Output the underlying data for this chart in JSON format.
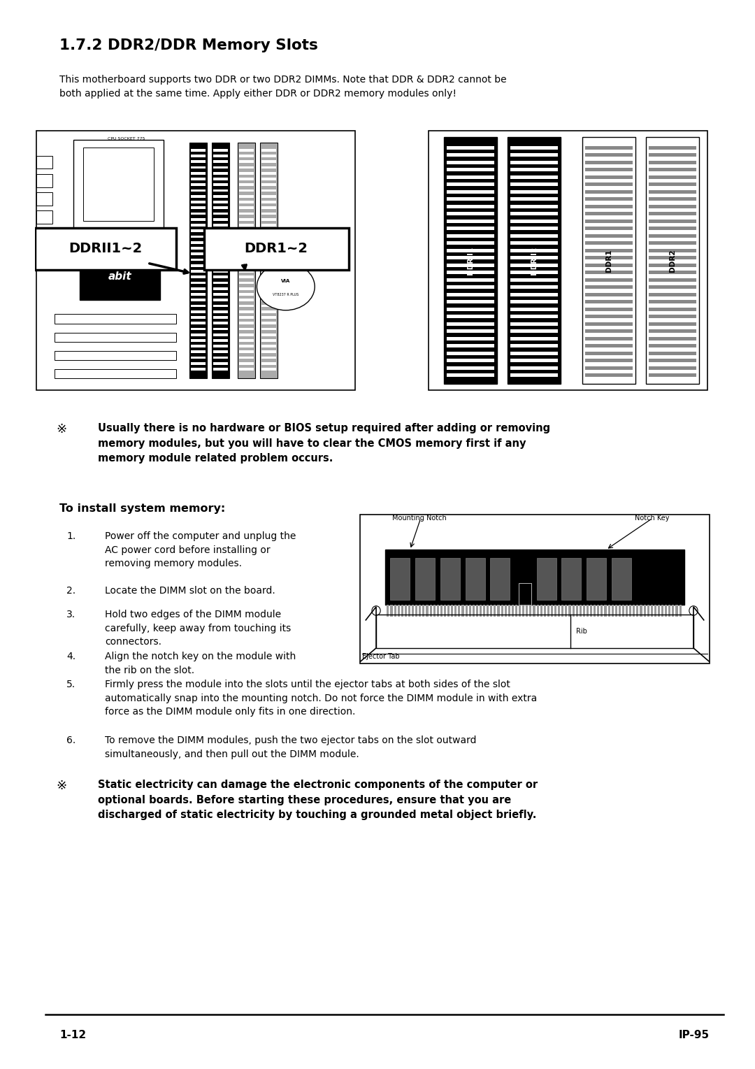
{
  "title": "1.7.2 DDR2/DDR Memory Slots",
  "intro_text": "This motherboard supports two DDR or two DDR2 DIMMs. Note that DDR & DDR2 cannot be\nboth applied at the same time. Apply either DDR or DDR2 memory modules only!",
  "warning1_symbol": "※",
  "warning1_text": "Usually there is no hardware or BIOS setup required after adding or removing\nmemory modules, but you will have to clear the CMOS memory first if any\nmemory module related problem occurs.",
  "install_title": "To install system memory:",
  "steps": [
    "Power off the computer and unplug the\nAC power cord before installing or\nremoving memory modules.",
    "Locate the DIMM slot on the board.",
    "Hold two edges of the DIMM module\ncarefully, keep away from touching its\nconnectors.",
    "Align the notch key on the module with\nthe rib on the slot.",
    "Firmly press the module into the slots until the ejector tabs at both sides of the slot\nautomatically snap into the mounting notch. Do not force the DIMM module in with extra\nforce as the DIMM module only fits in one direction.",
    "To remove the DIMM modules, push the two ejector tabs on the slot outward\nsimultaneously, and then pull out the DIMM module."
  ],
  "warning2_symbol": "※",
  "warning2_text": "Static electricity can damage the electronic components of the computer or\noptional boards. Before starting these procedures, ensure that you are\ndischarged of static electricity by touching a grounded metal object briefly.",
  "page_left": "1-12",
  "page_right": "IP-95",
  "bg_color": "#ffffff",
  "text_color": "#000000"
}
